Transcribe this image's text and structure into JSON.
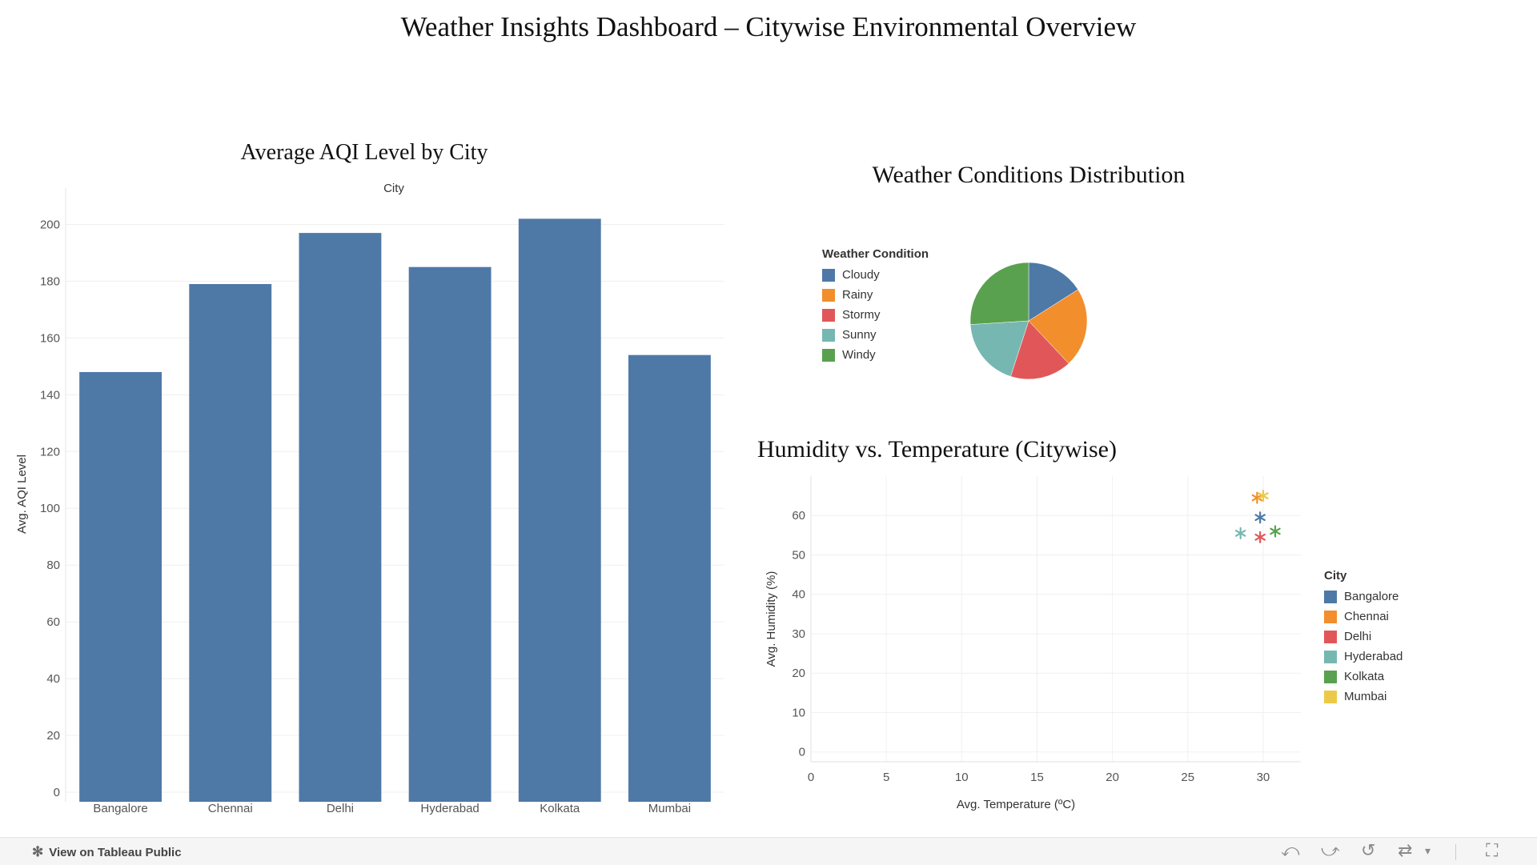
{
  "dashboard": {
    "title": "Weather Insights Dashboard – Citywise Environmental Overview"
  },
  "colors": {
    "bar": "#4e79a7",
    "Cloudy": "#4e79a7",
    "Rainy": "#f28e2b",
    "Stormy": "#e15759",
    "Sunny": "#76b7b2",
    "Windy": "#59a14f",
    "Bangalore": "#4e79a7",
    "Chennai": "#f28e2b",
    "Delhi": "#e15759",
    "Hyderabad": "#76b7b2",
    "Kolkata": "#59a14f",
    "Mumbai": "#edc948"
  },
  "chart_data": [
    {
      "type": "bar",
      "title": "Average AQI Level by City",
      "column_header": "City",
      "ylabel": "Avg. AQI Level",
      "categories": [
        "Bangalore",
        "Chennai",
        "Delhi",
        "Hyderabad",
        "Kolkata",
        "Mumbai"
      ],
      "values": [
        148,
        179,
        197,
        185,
        202,
        154
      ],
      "ylim": [
        0,
        210
      ],
      "yticks": [
        0,
        20,
        40,
        60,
        80,
        100,
        120,
        140,
        160,
        180,
        200
      ],
      "grid": true
    },
    {
      "type": "pie",
      "title": "Weather Conditions Distribution",
      "legend_title": "Weather Condition",
      "legend_position": "left",
      "labels": [
        "Cloudy",
        "Rainy",
        "Stormy",
        "Sunny",
        "Windy"
      ],
      "values": [
        16,
        22,
        17,
        19,
        26
      ]
    },
    {
      "type": "scatter",
      "title": "Humidity vs. Temperature (Citywise)",
      "xlabel": "Avg. Temperature (ºC)",
      "ylabel": "Avg. Humidity (%)",
      "legend_title": "City",
      "legend_position": "right",
      "xlim": [
        0,
        32.5
      ],
      "ylim": [
        -2.5,
        70
      ],
      "xticks": [
        0,
        5,
        10,
        15,
        20,
        25,
        30
      ],
      "yticks": [
        0,
        10,
        20,
        30,
        40,
        50,
        60
      ],
      "marker": "asterisk",
      "points": [
        {
          "name": "Bangalore",
          "x": 29.8,
          "y": 59.5
        },
        {
          "name": "Chennai",
          "x": 29.6,
          "y": 64.5
        },
        {
          "name": "Delhi",
          "x": 29.8,
          "y": 54.5
        },
        {
          "name": "Hyderabad",
          "x": 28.5,
          "y": 55.5
        },
        {
          "name": "Kolkata",
          "x": 30.8,
          "y": 56.0
        },
        {
          "name": "Mumbai",
          "x": 30.0,
          "y": 65.0
        }
      ]
    }
  ],
  "footer": {
    "link_label": "View on Tableau Public",
    "icons": [
      "undo-icon",
      "redo-icon",
      "revert-icon",
      "refresh-icon",
      "dropdown-icon",
      "fullscreen-icon"
    ]
  }
}
